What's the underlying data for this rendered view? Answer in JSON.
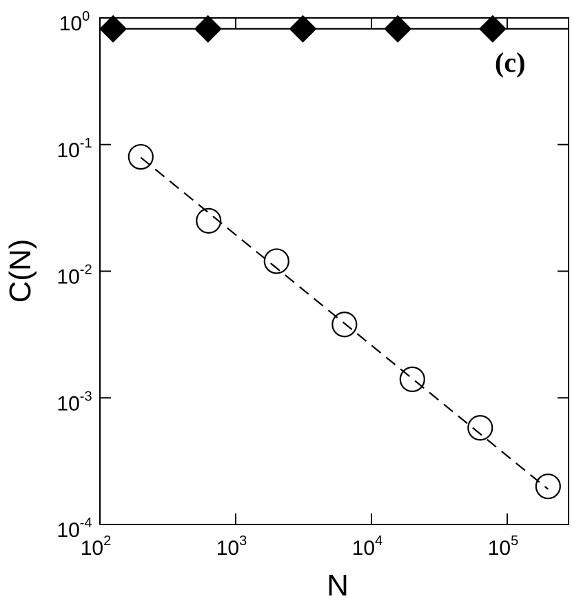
{
  "chart_data": {
    "type": "scatter",
    "title": "",
    "xlabel": "N",
    "ylabel": "C(N)",
    "annotation": "(c)",
    "x_scale": "log",
    "y_scale": "log",
    "xlim": [
      100,
      300000
    ],
    "ylim": [
      0.0001,
      1
    ],
    "grid": false,
    "x_ticks": [
      {
        "value": 100,
        "base": "10",
        "exp": "2"
      },
      {
        "value": 1000,
        "base": "10",
        "exp": "3"
      },
      {
        "value": 10000,
        "base": "10",
        "exp": "4"
      },
      {
        "value": 100000,
        "base": "10",
        "exp": "5"
      }
    ],
    "y_ticks": [
      {
        "value": 0.0001,
        "base": "10",
        "exp": "-4"
      },
      {
        "value": 0.001,
        "base": "10",
        "exp": "-3"
      },
      {
        "value": 0.01,
        "base": "10",
        "exp": "-2"
      },
      {
        "value": 0.1,
        "base": "10",
        "exp": "-1"
      },
      {
        "value": 1,
        "base": "10",
        "exp": "0"
      }
    ],
    "series": [
      {
        "marker": "filled-diamond",
        "color": "#000000",
        "x": [
          125,
          625,
          3125,
          15625,
          78125
        ],
        "y": [
          0.82,
          0.82,
          0.82,
          0.82,
          0.82
        ]
      },
      {
        "marker": "open-circle",
        "color": "#000000",
        "x": [
          200,
          632,
          2000,
          6325,
          20000,
          63246,
          200000
        ],
        "y": [
          0.08,
          0.025,
          0.012,
          0.0038,
          0.0014,
          0.00058,
          0.0002
        ]
      }
    ],
    "reference_lines": [
      {
        "style": "solid",
        "x": [
          100,
          300000
        ],
        "y": [
          0.82,
          0.82
        ]
      },
      {
        "style": "dashed",
        "x": [
          200,
          200000
        ],
        "y": [
          0.079,
          0.00019
        ]
      }
    ]
  }
}
